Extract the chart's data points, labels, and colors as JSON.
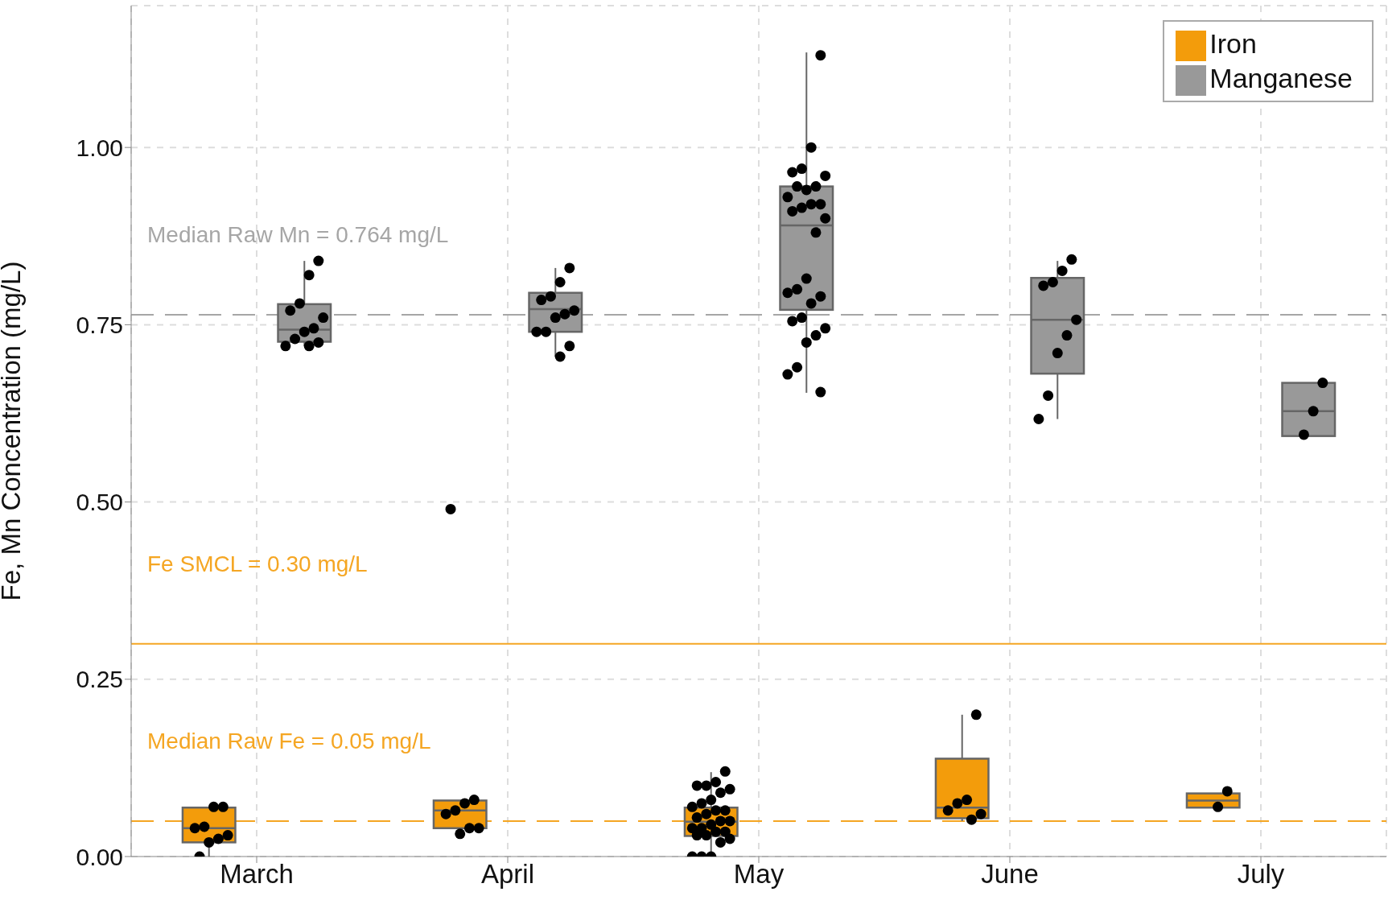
{
  "chart_data": {
    "type": "box",
    "ylabel": "Fe, Mn Concentration (mg/L)",
    "categories": [
      "March",
      "April",
      "May",
      "June",
      "July"
    ],
    "ylim": [
      0,
      1.2
    ],
    "yticks": [
      {
        "value": 0,
        "label": "0.00"
      },
      {
        "value": 0.25,
        "label": "0.25"
      },
      {
        "value": 0.5,
        "label": "0.50"
      },
      {
        "value": 0.75,
        "label": "0.75"
      },
      {
        "value": 1,
        "label": "1.00"
      }
    ],
    "grid": true,
    "legend": "top right",
    "marker": "circle",
    "series": [
      {
        "name": "Iron",
        "type": "box",
        "color": "#f39c0b",
        "boxes": [
          {
            "low": 0,
            "q1": 0.02,
            "median": 0.04,
            "q3": 0.069,
            "high": 0.069
          },
          {
            "low": 0.04,
            "q1": 0.04,
            "median": 0.065,
            "q3": 0.079,
            "high": 0.079
          },
          {
            "low": 0,
            "q1": 0.029,
            "median": 0.049,
            "q3": 0.069,
            "high": 0.119
          },
          {
            "low": 0.05,
            "q1": 0.054,
            "median": 0.069,
            "q3": 0.138,
            "high": 0.2
          },
          {
            "low": 0.069,
            "q1": 0.069,
            "median": 0.079,
            "q3": 0.089,
            "high": 0.089
          }
        ]
      },
      {
        "name": "Manganese",
        "type": "box",
        "color": "#999999",
        "boxes": [
          {
            "low": 0.72,
            "q1": 0.726,
            "median": 0.743,
            "q3": 0.779,
            "high": 0.84
          },
          {
            "low": 0.705,
            "q1": 0.74,
            "median": 0.772,
            "q3": 0.795,
            "high": 0.83
          },
          {
            "low": 0.654,
            "q1": 0.771,
            "median": 0.89,
            "q3": 0.945,
            "high": 1.134
          },
          {
            "low": 0.617,
            "q1": 0.681,
            "median": 0.757,
            "q3": 0.816,
            "high": 0.84
          },
          {
            "low": 0.593,
            "q1": 0.593,
            "median": 0.628,
            "q3": 0.668,
            "high": 0.668
          }
        ]
      },
      {
        "type": "scatter",
        "color": "#000000",
        "x": [
          "March",
          "March",
          "March",
          "March",
          "March",
          "March",
          "March",
          "March",
          "April",
          "April",
          "April",
          "April",
          "April",
          "April",
          "April",
          "April",
          "May",
          "May",
          "May",
          "May",
          "May",
          "May",
          "May",
          "May",
          "May",
          "May",
          "May",
          "May",
          "May",
          "May",
          "May",
          "May",
          "May",
          "May",
          "May",
          "May",
          "May",
          "May",
          "May",
          "May",
          "May",
          "May",
          "May",
          "June",
          "June",
          "June",
          "June",
          "June",
          "June",
          "July",
          "July"
        ],
        "values": [
          0.07,
          0.07,
          0.042,
          0.04,
          0.03,
          0.025,
          0.02,
          0,
          0.08,
          0.075,
          0.065,
          0.06,
          0.04,
          0.04,
          0.032,
          0.49,
          0.12,
          0.105,
          0.1,
          0.1,
          0.095,
          0.09,
          0.08,
          0.075,
          0.07,
          0.065,
          0.065,
          0.06,
          0.055,
          0.05,
          0.05,
          0.045,
          0.04,
          0.04,
          0.035,
          0.035,
          0.03,
          0.03,
          0.025,
          0.02,
          0,
          0,
          0,
          0.2,
          0.08,
          0.075,
          0.065,
          0.06,
          0.052,
          0.092,
          0.07
        ]
      },
      {
        "type": "scatter",
        "color": "#000000",
        "x": [
          "March",
          "March",
          "March",
          "March",
          "March",
          "March",
          "March",
          "March",
          "March",
          "March",
          "March",
          "April",
          "April",
          "April",
          "April",
          "April",
          "April",
          "April",
          "April",
          "April",
          "April",
          "April",
          "May",
          "May",
          "May",
          "May",
          "May",
          "May",
          "May",
          "May",
          "May",
          "May",
          "May",
          "May",
          "May",
          "May",
          "May",
          "May",
          "May",
          "May",
          "May",
          "May",
          "May",
          "May",
          "May",
          "May",
          "May",
          "May",
          "May",
          "May",
          "June",
          "June",
          "June",
          "June",
          "June",
          "June",
          "June",
          "June",
          "June",
          "July",
          "July",
          "July"
        ],
        "values": [
          0.84,
          0.82,
          0.78,
          0.77,
          0.76,
          0.745,
          0.74,
          0.73,
          0.72,
          0.725,
          0.72,
          0.83,
          0.81,
          0.79,
          0.785,
          0.77,
          0.765,
          0.76,
          0.74,
          0.74,
          0.72,
          0.705,
          1.13,
          1.0,
          0.97,
          0.965,
          0.96,
          0.945,
          0.94,
          0.945,
          0.93,
          0.92,
          0.92,
          0.915,
          0.91,
          0.9,
          0.88,
          0.815,
          0.8,
          0.795,
          0.79,
          0.78,
          0.76,
          0.755,
          0.745,
          0.735,
          0.725,
          0.69,
          0.68,
          0.655,
          0.842,
          0.826,
          0.81,
          0.805,
          0.757,
          0.735,
          0.71,
          0.65,
          0.617,
          0.668,
          0.628,
          0.595
        ]
      }
    ],
    "ref_lines": [
      {
        "axis": "y",
        "value": 0.764,
        "label": "Median Raw Mn = 0.764 mg/L",
        "color": "#a6a6a6",
        "line_style": "dashed"
      },
      {
        "axis": "y",
        "value": 0.3,
        "label": "Fe SMCL = 0.30 mg/L",
        "color": "#f5a623",
        "line_style": "solid"
      },
      {
        "axis": "y",
        "value": 0.05,
        "label": "Median Raw Fe = 0.05 mg/L",
        "color": "#f5a623",
        "line_style": "dashed"
      }
    ]
  }
}
